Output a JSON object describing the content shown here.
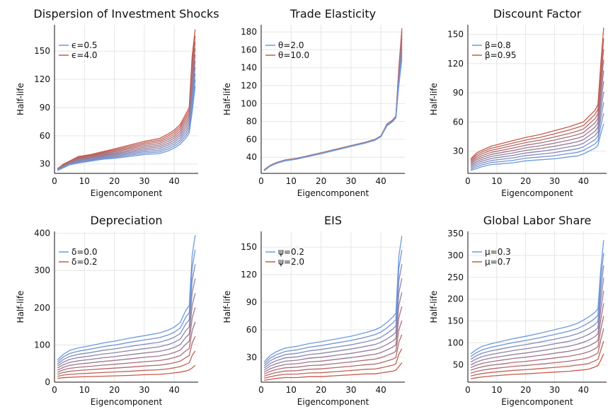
{
  "chart_data": [
    {
      "type": "line",
      "title": "Dispersion of Investment Shocks",
      "xlabel": "Eigencomponent",
      "ylabel": "Half-life",
      "xlim": [
        0,
        48
      ],
      "ylim": [
        20,
        178
      ],
      "xticks": [
        0,
        10,
        20,
        30,
        40
      ],
      "yticks": [
        30,
        60,
        90,
        120,
        150
      ],
      "grid": true,
      "legend_position": "top-left",
      "n_lines": 10,
      "color_first": "#6b9ae0",
      "color_last": "#c85a48",
      "legend": [
        {
          "label": "ϵ=0.5",
          "color": "#6b9ae0"
        },
        {
          "label": "ϵ=4.0",
          "color": "#c85a48"
        }
      ],
      "series": [
        {
          "name": "ϵ=0.5",
          "x": [
            1,
            3,
            5,
            8,
            12,
            16,
            20,
            25,
            30,
            35,
            38,
            40,
            42,
            44,
            45,
            46,
            47
          ],
          "y": [
            23,
            26,
            29,
            31,
            33,
            35,
            36,
            38,
            40,
            41,
            44,
            47,
            51,
            58,
            63,
            85,
            113
          ]
        },
        {
          "name": "ϵ=4.0",
          "x": [
            1,
            3,
            5,
            8,
            12,
            16,
            20,
            25,
            30,
            35,
            38,
            40,
            42,
            44,
            45,
            46,
            47
          ],
          "y": [
            25,
            30,
            33,
            38,
            40,
            43,
            46,
            50,
            54,
            57,
            62,
            66,
            72,
            84,
            90,
            145,
            173
          ]
        }
      ]
    },
    {
      "type": "line",
      "title": "Trade Elasticity",
      "xlabel": "Eigencomponent",
      "ylabel": "Half-life",
      "xlim": [
        0,
        48
      ],
      "ylim": [
        22,
        188
      ],
      "xticks": [
        0,
        10,
        20,
        30,
        40
      ],
      "yticks": [
        40,
        60,
        80,
        100,
        120,
        140,
        160,
        180
      ],
      "grid": true,
      "legend_position": "top-left",
      "n_lines": 10,
      "color_first": "#6b9ae0",
      "color_last": "#c85a48",
      "legend": [
        {
          "label": "θ=2.0",
          "color": "#6b9ae0"
        },
        {
          "label": "θ=10.0",
          "color": "#c85a48"
        }
      ],
      "series": [
        {
          "name": "θ=2.0",
          "x": [
            1,
            3,
            5,
            8,
            12,
            16,
            20,
            25,
            30,
            35,
            38,
            40,
            42,
            44,
            45,
            46,
            47
          ],
          "y": [
            25,
            30,
            33,
            36,
            38,
            41,
            44,
            48,
            52,
            56,
            59,
            63,
            75,
            80,
            84,
            120,
            150
          ]
        },
        {
          "name": "θ=10.0",
          "x": [
            1,
            3,
            5,
            8,
            12,
            16,
            20,
            25,
            30,
            35,
            38,
            40,
            42,
            44,
            45,
            46,
            47
          ],
          "y": [
            26,
            31,
            34,
            37,
            39,
            42,
            45,
            49,
            53,
            57,
            60,
            64,
            77,
            82,
            86,
            140,
            184
          ]
        }
      ]
    },
    {
      "type": "line",
      "title": "Discount Factor",
      "xlabel": "Eigencomponent",
      "ylabel": "Half-life",
      "xlim": [
        0,
        48
      ],
      "ylim": [
        7,
        160
      ],
      "xticks": [
        0,
        10,
        20,
        30,
        40
      ],
      "yticks": [
        30,
        60,
        90,
        120,
        150
      ],
      "grid": true,
      "legend_position": "top-left",
      "n_lines": 10,
      "color_first": "#6b9ae0",
      "color_last": "#c85a48",
      "legend": [
        {
          "label": "β=0.8",
          "color": "#6b9ae0"
        },
        {
          "label": "β=0.95",
          "color": "#c85a48"
        }
      ],
      "series": [
        {
          "name": "β=0.8",
          "x": [
            1,
            3,
            5,
            8,
            12,
            16,
            20,
            25,
            30,
            35,
            38,
            40,
            42,
            44,
            45,
            46,
            47
          ],
          "y": [
            10,
            12,
            14,
            16,
            17,
            18,
            20,
            21,
            22,
            24,
            25,
            27,
            30,
            33,
            36,
            48,
            58
          ]
        },
        {
          "name": "β=0.95",
          "x": [
            1,
            3,
            5,
            8,
            12,
            16,
            20,
            25,
            30,
            35,
            38,
            40,
            42,
            44,
            45,
            46,
            47
          ],
          "y": [
            22,
            28,
            31,
            35,
            38,
            41,
            44,
            47,
            51,
            55,
            58,
            60,
            66,
            72,
            78,
            120,
            157
          ]
        }
      ]
    },
    {
      "type": "line",
      "title": "Depreciation",
      "xlabel": "Eigencomponent",
      "ylabel": "Half-life",
      "xlim": [
        0,
        48
      ],
      "ylim": [
        0,
        405
      ],
      "xticks": [
        0,
        10,
        20,
        30,
        40
      ],
      "yticks": [
        0,
        100,
        200,
        300,
        400
      ],
      "grid": true,
      "legend_position": "top-left",
      "n_lines": 10,
      "color_first": "#6b9ae0",
      "color_last": "#c85a48",
      "legend": [
        {
          "label": "δ=0.0",
          "color": "#6b9ae0"
        },
        {
          "label": "δ=0.2",
          "color": "#c85a48"
        }
      ],
      "series": [
        {
          "name": "δ=0.0",
          "x": [
            1,
            3,
            5,
            8,
            12,
            16,
            20,
            25,
            30,
            35,
            38,
            40,
            42,
            44,
            45,
            46,
            47
          ],
          "y": [
            60,
            75,
            85,
            92,
            98,
            105,
            110,
            118,
            125,
            132,
            140,
            148,
            160,
            195,
            205,
            340,
            395
          ]
        },
        {
          "name": "δ=0.2",
          "x": [
            1,
            3,
            5,
            8,
            12,
            16,
            20,
            25,
            30,
            35,
            38,
            40,
            42,
            44,
            45,
            46,
            47
          ],
          "y": [
            10,
            12,
            13,
            14,
            15,
            16,
            17,
            18,
            20,
            21,
            23,
            25,
            27,
            30,
            33,
            38,
            45
          ]
        }
      ]
    },
    {
      "type": "line",
      "title": "EIS",
      "xlabel": "Eigencomponent",
      "ylabel": "Half-life",
      "xlim": [
        0,
        48
      ],
      "ylim": [
        3,
        167
      ],
      "xticks": [
        0,
        10,
        20,
        30,
        40
      ],
      "yticks": [
        30,
        60,
        90,
        120,
        150
      ],
      "grid": true,
      "legend_position": "top-left",
      "n_lines": 10,
      "color_first": "#6b9ae0",
      "color_last": "#c85a48",
      "legend": [
        {
          "label": "ψ=0.2",
          "color": "#6b9ae0"
        },
        {
          "label": "ψ=2.0",
          "color": "#c85a48"
        }
      ],
      "series": [
        {
          "name": "ψ=0.2",
          "x": [
            1,
            3,
            5,
            8,
            12,
            16,
            20,
            25,
            30,
            35,
            38,
            40,
            42,
            44,
            45,
            46,
            47
          ],
          "y": [
            25,
            32,
            36,
            40,
            42,
            45,
            47,
            50,
            53,
            57,
            60,
            63,
            68,
            74,
            78,
            140,
            162
          ]
        },
        {
          "name": "ψ=2.0",
          "x": [
            1,
            3,
            5,
            8,
            12,
            16,
            20,
            25,
            30,
            35,
            38,
            40,
            42,
            44,
            45,
            46,
            47
          ],
          "y": [
            5,
            6,
            7,
            8,
            8,
            9,
            9,
            10,
            11,
            12,
            12,
            13,
            14,
            15,
            16,
            20,
            24
          ]
        }
      ]
    },
    {
      "type": "line",
      "title": "Global Labor Share",
      "xlabel": "Eigencomponent",
      "ylabel": "Half-life",
      "xlim": [
        0,
        48
      ],
      "ylim": [
        10,
        355
      ],
      "xticks": [
        0,
        10,
        20,
        30,
        40
      ],
      "yticks": [
        50,
        100,
        150,
        200,
        250,
        300,
        350
      ],
      "grid": true,
      "legend_position": "top-left",
      "n_lines": 10,
      "color_first": "#6b9ae0",
      "color_last": "#c85a48",
      "legend": [
        {
          "label": "μ=0.3",
          "color": "#6b9ae0"
        },
        {
          "label": "μ=0.7",
          "color": "#c85a48"
        }
      ],
      "series": [
        {
          "name": "μ=0.3",
          "x": [
            1,
            3,
            5,
            8,
            12,
            16,
            20,
            25,
            30,
            35,
            38,
            40,
            42,
            44,
            45,
            46,
            47
          ],
          "y": [
            75,
            85,
            92,
            98,
            104,
            110,
            115,
            122,
            130,
            138,
            145,
            152,
            160,
            170,
            178,
            270,
            335
          ]
        },
        {
          "name": "μ=0.7",
          "x": [
            1,
            3,
            5,
            8,
            12,
            16,
            20,
            25,
            30,
            35,
            38,
            40,
            42,
            44,
            45,
            46,
            47
          ],
          "y": [
            18,
            20,
            22,
            24,
            26,
            28,
            29,
            31,
            33,
            35,
            37,
            38,
            40,
            45,
            48,
            60,
            75
          ]
        }
      ]
    }
  ]
}
